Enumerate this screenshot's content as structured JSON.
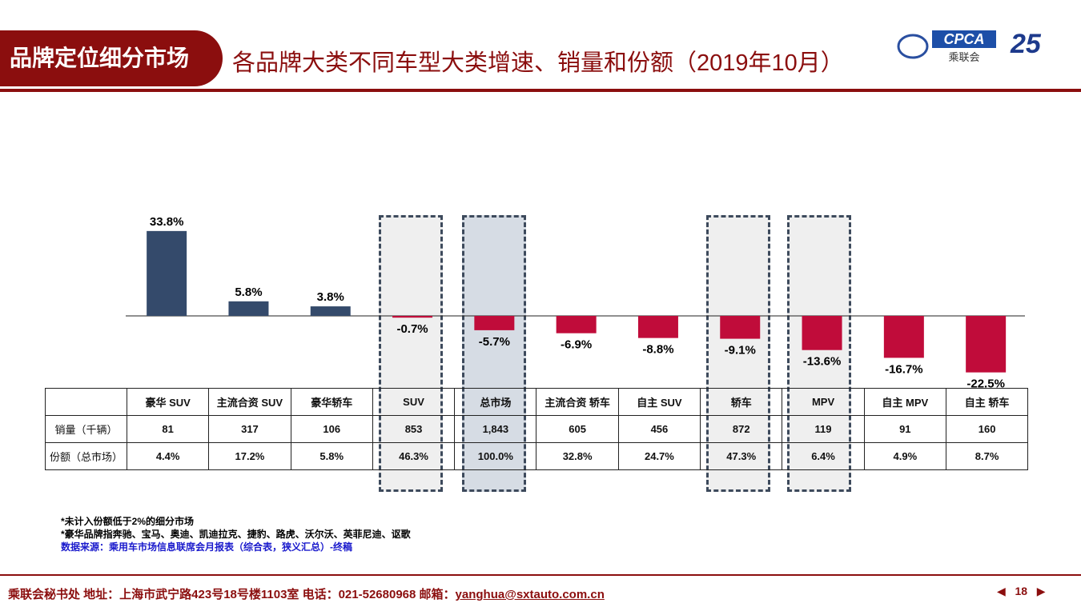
{
  "header": {
    "tag": "品牌定位细分市场",
    "title": "各品牌大类不同车型大类增速、销量和份额（2019年10月）",
    "logo_text": "CPCA",
    "logo_sub": "乘联会",
    "anniversary": "25"
  },
  "chart_data": {
    "type": "bar",
    "title": "各品牌大类不同车型大类增速",
    "categories": [
      "豪华 SUV",
      "主流合资 SUV",
      "豪华轿车",
      "SUV",
      "总市场",
      "主流合资 轿车",
      "自主 SUV",
      "轿车",
      "MPV",
      "自主 MPV",
      "自主 轿车"
    ],
    "values": [
      33.8,
      5.8,
      3.8,
      -0.7,
      -5.7,
      -6.9,
      -8.8,
      -9.1,
      -13.6,
      -16.7,
      -22.5
    ],
    "labels": [
      "33.8%",
      "5.8%",
      "3.8%",
      "-0.7%",
      "-5.7%",
      "-6.9%",
      "-8.8%",
      "-9.1%",
      "-13.6%",
      "-16.7%",
      "-22.5%"
    ],
    "positive_color": "#344a6b",
    "negative_color": "#c00c3a",
    "highlighted": [
      "SUV",
      "总市场",
      "轿车",
      "MPV"
    ]
  },
  "table": {
    "row_headers": [
      "销量（千辆）",
      "份额（总市场）"
    ],
    "sales": [
      "81",
      "317",
      "106",
      "853",
      "1,843",
      "605",
      "456",
      "872",
      "119",
      "91",
      "160"
    ],
    "share": [
      "4.4%",
      "17.2%",
      "5.8%",
      "46.3%",
      "100.0%",
      "32.8%",
      "24.7%",
      "47.3%",
      "6.4%",
      "4.9%",
      "8.7%"
    ]
  },
  "notes": [
    "*未计入份额低于2%的细分市场",
    "*豪华品牌指奔驰、宝马、奥迪、凯迪拉克、捷豹、路虎、沃尔沃、英菲尼迪、讴歌"
  ],
  "source": "数据来源：乘用车市场信息联席会月报表（综合表，狭义汇总）-终稿",
  "footer": {
    "text": "乘联会秘书处   地址：上海市武宁路423号18号楼1103室  电话：021-52680968   邮箱：",
    "email": "yanghua@sxtauto.com.cn",
    "page": "18"
  }
}
